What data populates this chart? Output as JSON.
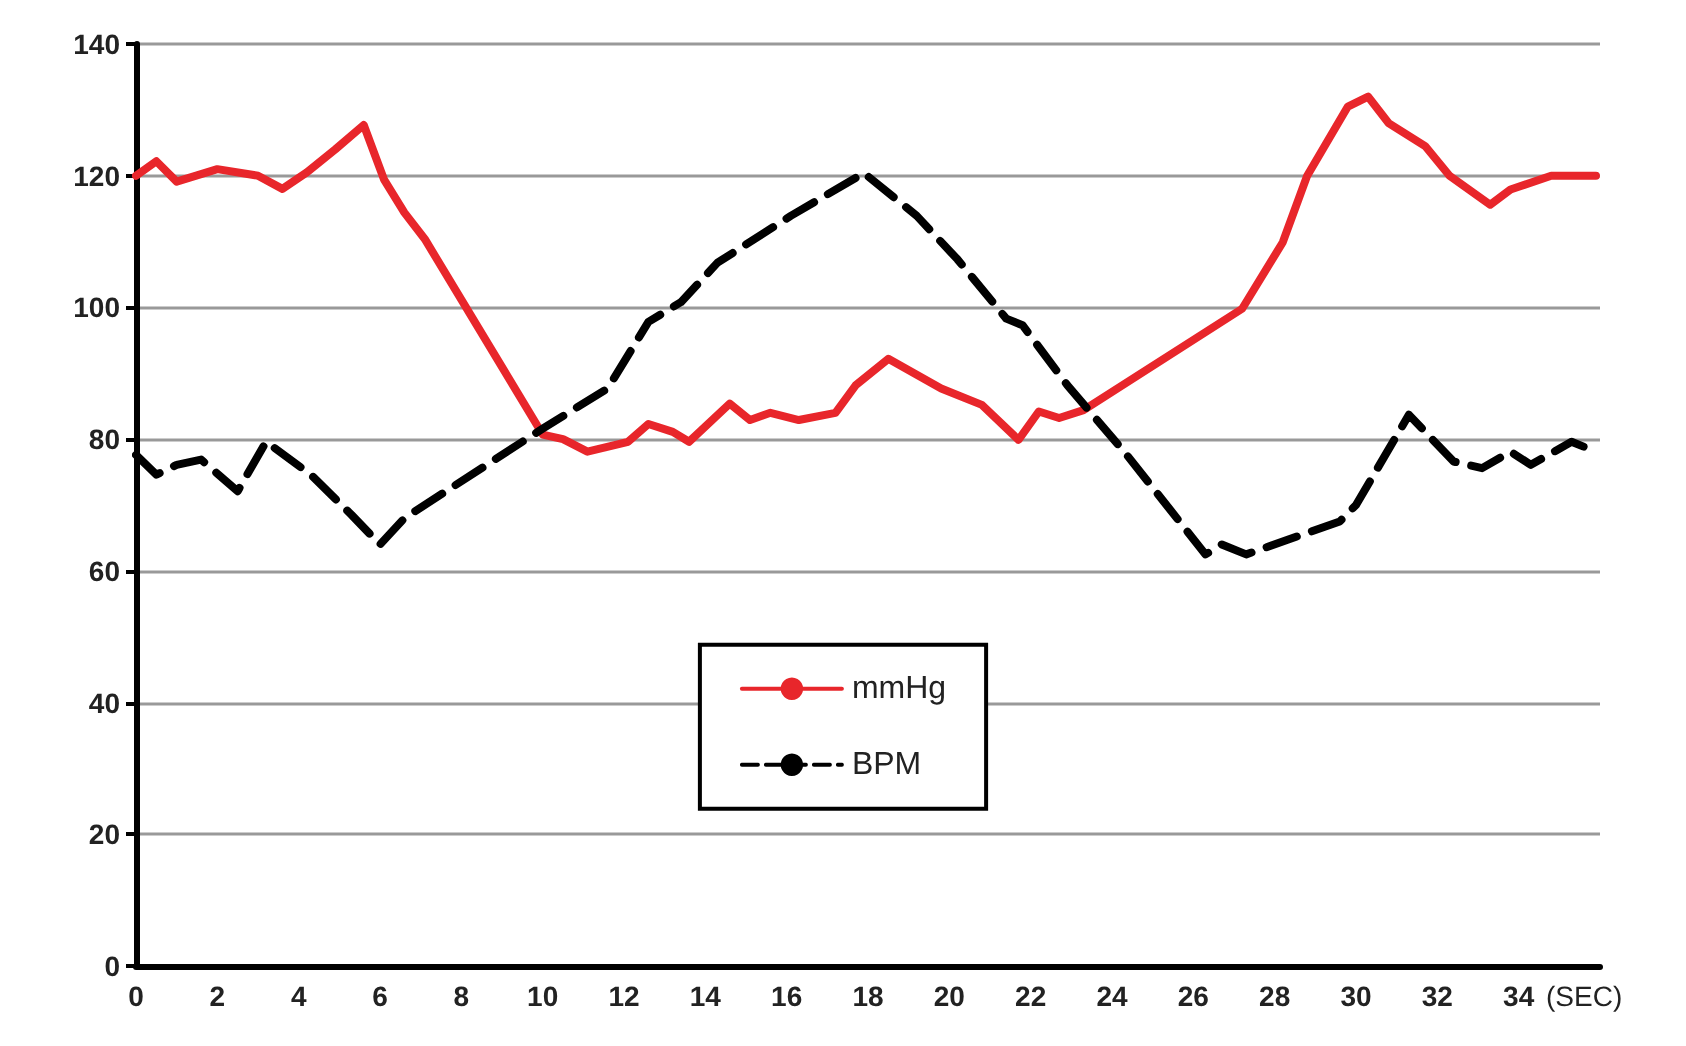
{
  "chart_data": {
    "type": "line",
    "xlabel": "(SEC)",
    "xlim": [
      0,
      36
    ],
    "xticks": [
      0,
      2,
      4,
      6,
      8,
      10,
      12,
      14,
      16,
      18,
      20,
      22,
      24,
      26,
      28,
      30,
      32,
      34
    ],
    "ylim": [
      0,
      140
    ],
    "yticks": [
      0,
      20,
      40,
      60,
      80,
      100,
      120,
      140
    ],
    "grid": "y",
    "legend": "center",
    "marker": "none",
    "series": [
      {
        "name": "mmHg",
        "color": "#e8262b",
        "line_style": "solid",
        "x": [
          0,
          0.5,
          1,
          2,
          3,
          3.6,
          4.2,
          4.9,
          5.6,
          6.1,
          6.6,
          7.1,
          10,
          10.5,
          11.1,
          12.1,
          12.6,
          13.2,
          13.6,
          14.6,
          15.1,
          15.6,
          16.3,
          17.2,
          17.7,
          18.5,
          19.8,
          20.8,
          21.7,
          22.2,
          22.7,
          23.3,
          27.2,
          28.2,
          28.8,
          29.8,
          30.3,
          30.8,
          31.7,
          32.3,
          33.3,
          33.8,
          34.8,
          35.9
        ],
        "values": [
          120,
          122.2,
          119.1,
          121,
          120,
          118,
          120.5,
          124,
          127.7,
          119.4,
          114.4,
          110.4,
          80.7,
          80,
          78.1,
          79.6,
          82.3,
          81.1,
          79.6,
          85.4,
          82.9,
          84,
          82.9,
          84,
          88.2,
          92.2,
          87.7,
          85.2,
          79.9,
          84.2,
          83.2,
          84.4,
          99.8,
          109.9,
          120,
          130.5,
          132,
          128,
          124.5,
          120,
          115.6,
          117.9,
          120,
          120
        ]
      },
      {
        "name": "BPM",
        "color": "#000000",
        "line_style": "dashed",
        "x": [
          0,
          0.5,
          1,
          1.6,
          2.5,
          3.2,
          4.3,
          5.3,
          6,
          6.6,
          10,
          11.6,
          12.6,
          13.4,
          14.3,
          16.1,
          17.9,
          19.2,
          20.2,
          21.4,
          21.8,
          22.9,
          24.3,
          26.3,
          26.7,
          27.3,
          29.6,
          30,
          31.3,
          32.4,
          33.1,
          33.8,
          34.3,
          35.3,
          35.9
        ],
        "values": [
          77.6,
          74.6,
          76.1,
          76.9,
          72.1,
          79.6,
          74.6,
          68.5,
          64,
          68,
          81.6,
          87.7,
          97.8,
          100.8,
          106.8,
          113.9,
          120.4,
          113.9,
          107.3,
          98.3,
          97.3,
          88.2,
          78.1,
          62.5,
          64,
          62.5,
          67.5,
          70,
          83.7,
          76.6,
          75.6,
          78.1,
          76.1,
          79.6,
          78.1
        ]
      }
    ]
  }
}
